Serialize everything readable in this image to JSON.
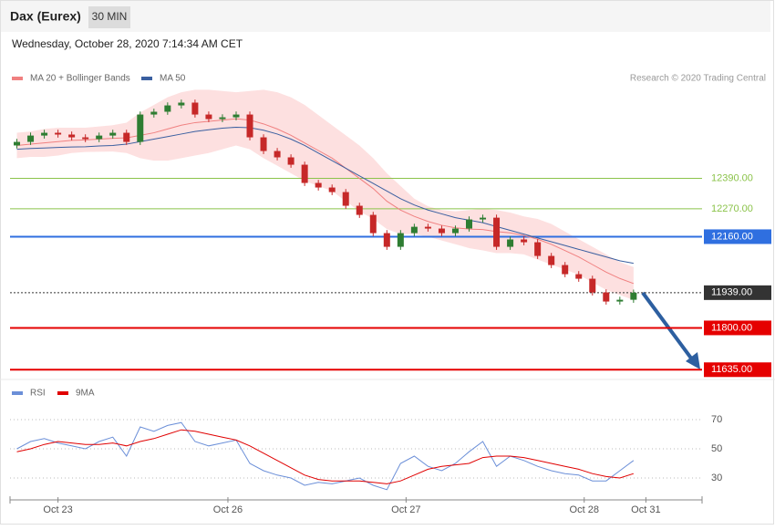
{
  "chart_data": [
    {
      "type": "candlestick",
      "title": "Dax (Eurex)",
      "interval": "30 MIN",
      "subtitle": "Wednesday, October 28, 2020 7:14:34 AM CET",
      "source": "Research © 2020 Trading Central",
      "x": [
        0,
        1,
        2,
        3,
        4,
        5,
        6,
        7,
        8,
        9,
        10,
        11,
        12,
        13,
        14,
        15,
        16,
        17,
        18,
        19,
        20,
        21,
        22,
        23,
        24,
        25,
        26,
        27,
        28,
        29,
        30,
        31,
        32,
        33,
        34,
        35,
        36,
        37,
        38,
        39,
        40,
        41,
        42,
        43,
        44,
        45
      ],
      "open": [
        12520,
        12534,
        12559,
        12570,
        12563,
        12552,
        12545,
        12559,
        12570,
        12534,
        12642,
        12653,
        12678,
        12689,
        12642,
        12624,
        12631,
        12642,
        12552,
        12498,
        12473,
        12444,
        12372,
        12354,
        12336,
        12282,
        12246,
        12174,
        12120,
        12174,
        12199,
        12192,
        12174,
        12192,
        12228,
        12235,
        12120,
        12149,
        12138,
        12084,
        12048,
        12012,
        11994,
        11940,
        11904,
        11911
      ],
      "high": [
        12546,
        12571,
        12582,
        12582,
        12575,
        12564,
        12571,
        12582,
        12582,
        12654,
        12665,
        12690,
        12701,
        12701,
        12654,
        12643,
        12654,
        12654,
        12564,
        12510,
        12485,
        12456,
        12384,
        12366,
        12348,
        12294,
        12258,
        12186,
        12186,
        12211,
        12211,
        12204,
        12204,
        12240,
        12247,
        12247,
        12161,
        12161,
        12150,
        12096,
        12060,
        12024,
        12006,
        11952,
        11923,
        11951
      ],
      "low": [
        12508,
        12522,
        12547,
        12551,
        12540,
        12533,
        12533,
        12547,
        12522,
        12522,
        12630,
        12641,
        12666,
        12630,
        12612,
        12612,
        12619,
        12540,
        12486,
        12461,
        12432,
        12360,
        12342,
        12324,
        12270,
        12234,
        12162,
        12108,
        12108,
        12162,
        12180,
        12162,
        12162,
        12180,
        12216,
        12108,
        12108,
        12126,
        12072,
        12036,
        12000,
        11982,
        11928,
        11892,
        11892,
        11899
      ],
      "close": [
        12534,
        12559,
        12570,
        12563,
        12552,
        12545,
        12559,
        12570,
        12534,
        12642,
        12653,
        12678,
        12689,
        12642,
        12624,
        12631,
        12642,
        12552,
        12498,
        12473,
        12444,
        12372,
        12354,
        12336,
        12282,
        12246,
        12174,
        12120,
        12174,
        12199,
        12192,
        12174,
        12192,
        12228,
        12235,
        12120,
        12149,
        12138,
        12084,
        12048,
        12012,
        11994,
        11940,
        11904,
        11911,
        11939
      ],
      "up_color": "#2e7d32",
      "down_color": "#c62828",
      "series": [
        {
          "name": "MA 20 + Bollinger Bands",
          "color": "#f08080",
          "band_color": "#fde0e0",
          "values": [
            12520,
            12525,
            12530,
            12535,
            12540,
            12542,
            12545,
            12548,
            12550,
            12560,
            12570,
            12585,
            12600,
            12610,
            12615,
            12620,
            12625,
            12620,
            12605,
            12585,
            12560,
            12530,
            12500,
            12470,
            12430,
            12390,
            12350,
            12300,
            12265,
            12240,
            12220,
            12205,
            12195,
            12190,
            12188,
            12180,
            12175,
            12165,
            12150,
            12130,
            12105,
            12080,
            12050,
            12020,
            11995,
            11975
          ],
          "upper": [
            12570,
            12575,
            12585,
            12590,
            12590,
            12590,
            12595,
            12600,
            12610,
            12650,
            12680,
            12710,
            12730,
            12740,
            12740,
            12735,
            12730,
            12735,
            12740,
            12730,
            12710,
            12680,
            12640,
            12600,
            12560,
            12520,
            12470,
            12410,
            12360,
            12310,
            12280,
            12265,
            12260,
            12265,
            12270,
            12265,
            12255,
            12240,
            12230,
            12210,
            12180,
            12150,
            12120,
            12090,
            12060,
            12040
          ],
          "lower": [
            12470,
            12475,
            12475,
            12480,
            12490,
            12494,
            12495,
            12496,
            12490,
            12470,
            12460,
            12460,
            12470,
            12480,
            12490,
            12505,
            12520,
            12505,
            12470,
            12440,
            12410,
            12380,
            12360,
            12340,
            12300,
            12260,
            12230,
            12190,
            12170,
            12170,
            12160,
            12145,
            12130,
            12115,
            12106,
            12095,
            12095,
            12090,
            12070,
            12050,
            12030,
            12010,
            11980,
            11950,
            11930,
            11910
          ]
        },
        {
          "name": "MA 50",
          "color": "#3a5fa0",
          "values": [
            12505,
            12508,
            12510,
            12512,
            12514,
            12515,
            12518,
            12520,
            12525,
            12535,
            12545,
            12555,
            12565,
            12575,
            12582,
            12588,
            12592,
            12590,
            12580,
            12565,
            12545,
            12520,
            12490,
            12460,
            12430,
            12400,
            12370,
            12340,
            12310,
            12285,
            12265,
            12250,
            12235,
            12225,
            12215,
            12200,
            12185,
            12170,
            12155,
            12140,
            12125,
            12110,
            12095,
            12080,
            12065,
            12055
          ]
        }
      ],
      "levels": [
        {
          "value": 12390,
          "label": "12390.00",
          "color": "#8bc34a",
          "boxed": false
        },
        {
          "value": 12270,
          "label": "12270.00",
          "color": "#8bc34a",
          "boxed": false
        },
        {
          "value": 12160,
          "label": "12160.00",
          "color": "#2f6fe0",
          "boxed": true
        },
        {
          "value": 11939,
          "label": "11939.00",
          "color": "#333333",
          "boxed": true
        },
        {
          "value": 11800,
          "label": "11800.00",
          "color": "#e50000",
          "boxed": true
        },
        {
          "value": 11635,
          "label": "11635.00",
          "color": "#e50000",
          "boxed": true
        }
      ],
      "xlim": [
        -0.5,
        50
      ],
      "ylim": [
        11600,
        12860
      ]
    },
    {
      "type": "line",
      "x": [
        0,
        1,
        2,
        3,
        4,
        5,
        6,
        7,
        8,
        9,
        10,
        11,
        12,
        13,
        14,
        15,
        16,
        17,
        18,
        19,
        20,
        21,
        22,
        23,
        24,
        25,
        26,
        27,
        28,
        29,
        30,
        31,
        32,
        33,
        34,
        35,
        36,
        37,
        38,
        39,
        40,
        41,
        42,
        43,
        44,
        45
      ],
      "series": [
        {
          "name": "RSI",
          "color": "#6b8fd8",
          "values": [
            50,
            55,
            57,
            54,
            52,
            50,
            55,
            58,
            45,
            65,
            62,
            66,
            68,
            55,
            52,
            54,
            56,
            40,
            35,
            32,
            30,
            25,
            27,
            26,
            28,
            30,
            25,
            22,
            40,
            45,
            38,
            35,
            40,
            48,
            55,
            38,
            45,
            42,
            38,
            35,
            33,
            32,
            28,
            28,
            35,
            42
          ]
        },
        {
          "name": "9MA",
          "color": "#e00000",
          "values": [
            48,
            50,
            53,
            55,
            54,
            53,
            53,
            54,
            52,
            55,
            57,
            60,
            63,
            62,
            60,
            58,
            56,
            52,
            47,
            42,
            37,
            32,
            29,
            28,
            28,
            28,
            27,
            26,
            28,
            32,
            36,
            38,
            39,
            40,
            44,
            45,
            45,
            44,
            42,
            40,
            38,
            36,
            33,
            31,
            30,
            33
          ]
        }
      ],
      "xlim": [
        -0.5,
        50
      ],
      "ylim": [
        15,
        82.5
      ],
      "yticks": [
        30,
        50,
        70
      ],
      "xticks": [
        {
          "value": 3,
          "label": "Oct 23"
        },
        {
          "value": 15.4,
          "label": "Oct 26"
        },
        {
          "value": 28.4,
          "label": "Oct 27"
        },
        {
          "value": 41.4,
          "label": "Oct 28"
        },
        {
          "value": 45.9,
          "label": "Oct 31"
        }
      ]
    }
  ]
}
